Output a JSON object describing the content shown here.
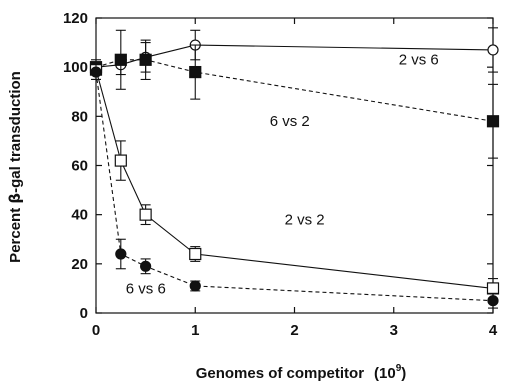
{
  "chart_data": {
    "type": "line",
    "title": "",
    "xlabel": "Genomes of competitor",
    "xlabel_unit": "(10",
    "xlabel_exp": "9",
    "xlabel_close": ")",
    "ylabel_pre": "Percent ",
    "ylabel_beta": "β",
    "ylabel_post": "-gal transduction",
    "xlim": [
      0,
      4
    ],
    "ylim": [
      0,
      120
    ],
    "xticks": [
      0,
      1,
      2,
      3,
      4
    ],
    "yticks": [
      0,
      20,
      40,
      60,
      80,
      100,
      120
    ],
    "grid": false,
    "legend": "none",
    "series": [
      {
        "name": "2 vs 6",
        "marker": "open-circle",
        "line": "solid",
        "x": [
          0,
          0.25,
          0.5,
          1,
          4
        ],
        "y": [
          100,
          101,
          104,
          109,
          107
        ],
        "err": [
          2,
          4,
          6,
          6,
          9
        ]
      },
      {
        "name": "6 vs 2",
        "marker": "filled-square",
        "line": "dashed",
        "x": [
          0,
          0.25,
          0.5,
          1,
          4
        ],
        "y": [
          100,
          103,
          103,
          98,
          78
        ],
        "err": [
          0,
          12,
          8,
          11,
          15
        ]
      },
      {
        "name": "2 vs 2",
        "marker": "open-square",
        "line": "solid",
        "x": [
          0,
          0.25,
          0.5,
          1,
          4
        ],
        "y": [
          99,
          62,
          40,
          24,
          10
        ],
        "err": [
          4,
          8,
          4,
          3,
          4
        ]
      },
      {
        "name": "6 vs 6",
        "marker": "filled-circle",
        "line": "dashed",
        "x": [
          0,
          0.25,
          0.5,
          1,
          4
        ],
        "y": [
          98,
          24,
          19,
          11,
          5
        ],
        "err": [
          3,
          6,
          3,
          2,
          3
        ]
      }
    ],
    "annotations": [
      {
        "text": "2 vs 6",
        "x": 3.05,
        "y": 101
      },
      {
        "text": "6 vs 2",
        "x": 1.75,
        "y": 76
      },
      {
        "text": "2 vs 2",
        "x": 1.9,
        "y": 36
      },
      {
        "text": "6 vs 6",
        "x": 0.3,
        "y": 8
      }
    ]
  }
}
